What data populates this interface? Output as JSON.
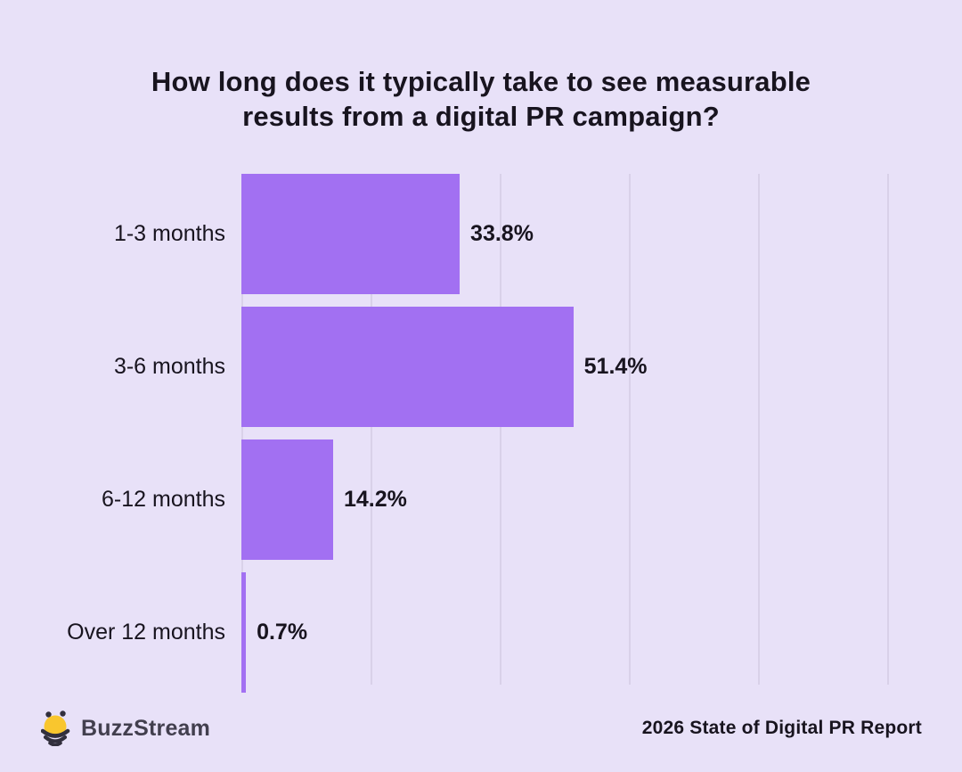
{
  "title": {
    "line1": "How long does it typically take to see measurable",
    "line2": "results from a digital PR campaign?"
  },
  "chart_data": {
    "type": "bar",
    "orientation": "horizontal",
    "title": "How long does it typically take to see measurable results from a digital PR campaign?",
    "categories": [
      "1-3 months",
      "3-6 months",
      "6-12 months",
      "Over 12 months"
    ],
    "values": [
      33.8,
      51.4,
      14.2,
      0.7
    ],
    "value_labels": [
      "33.8%",
      "51.4%",
      "14.2%",
      "0.7%"
    ],
    "xlabel": "",
    "ylabel": "",
    "xlim": [
      0,
      100
    ],
    "gridline_step_percent": 20,
    "grid": true,
    "legend": false,
    "colors": {
      "bar": "#a270f2",
      "background": "#e8e1f8",
      "gridline": "#d9d1e9",
      "text": "#18141f"
    }
  },
  "footer": {
    "logo_icon": "bee-icon",
    "brand": "BuzzStream",
    "source": "2026 State of Digital PR Report",
    "logo_colors": {
      "body": "#f9c62e",
      "stripes": "#322f3d"
    }
  }
}
